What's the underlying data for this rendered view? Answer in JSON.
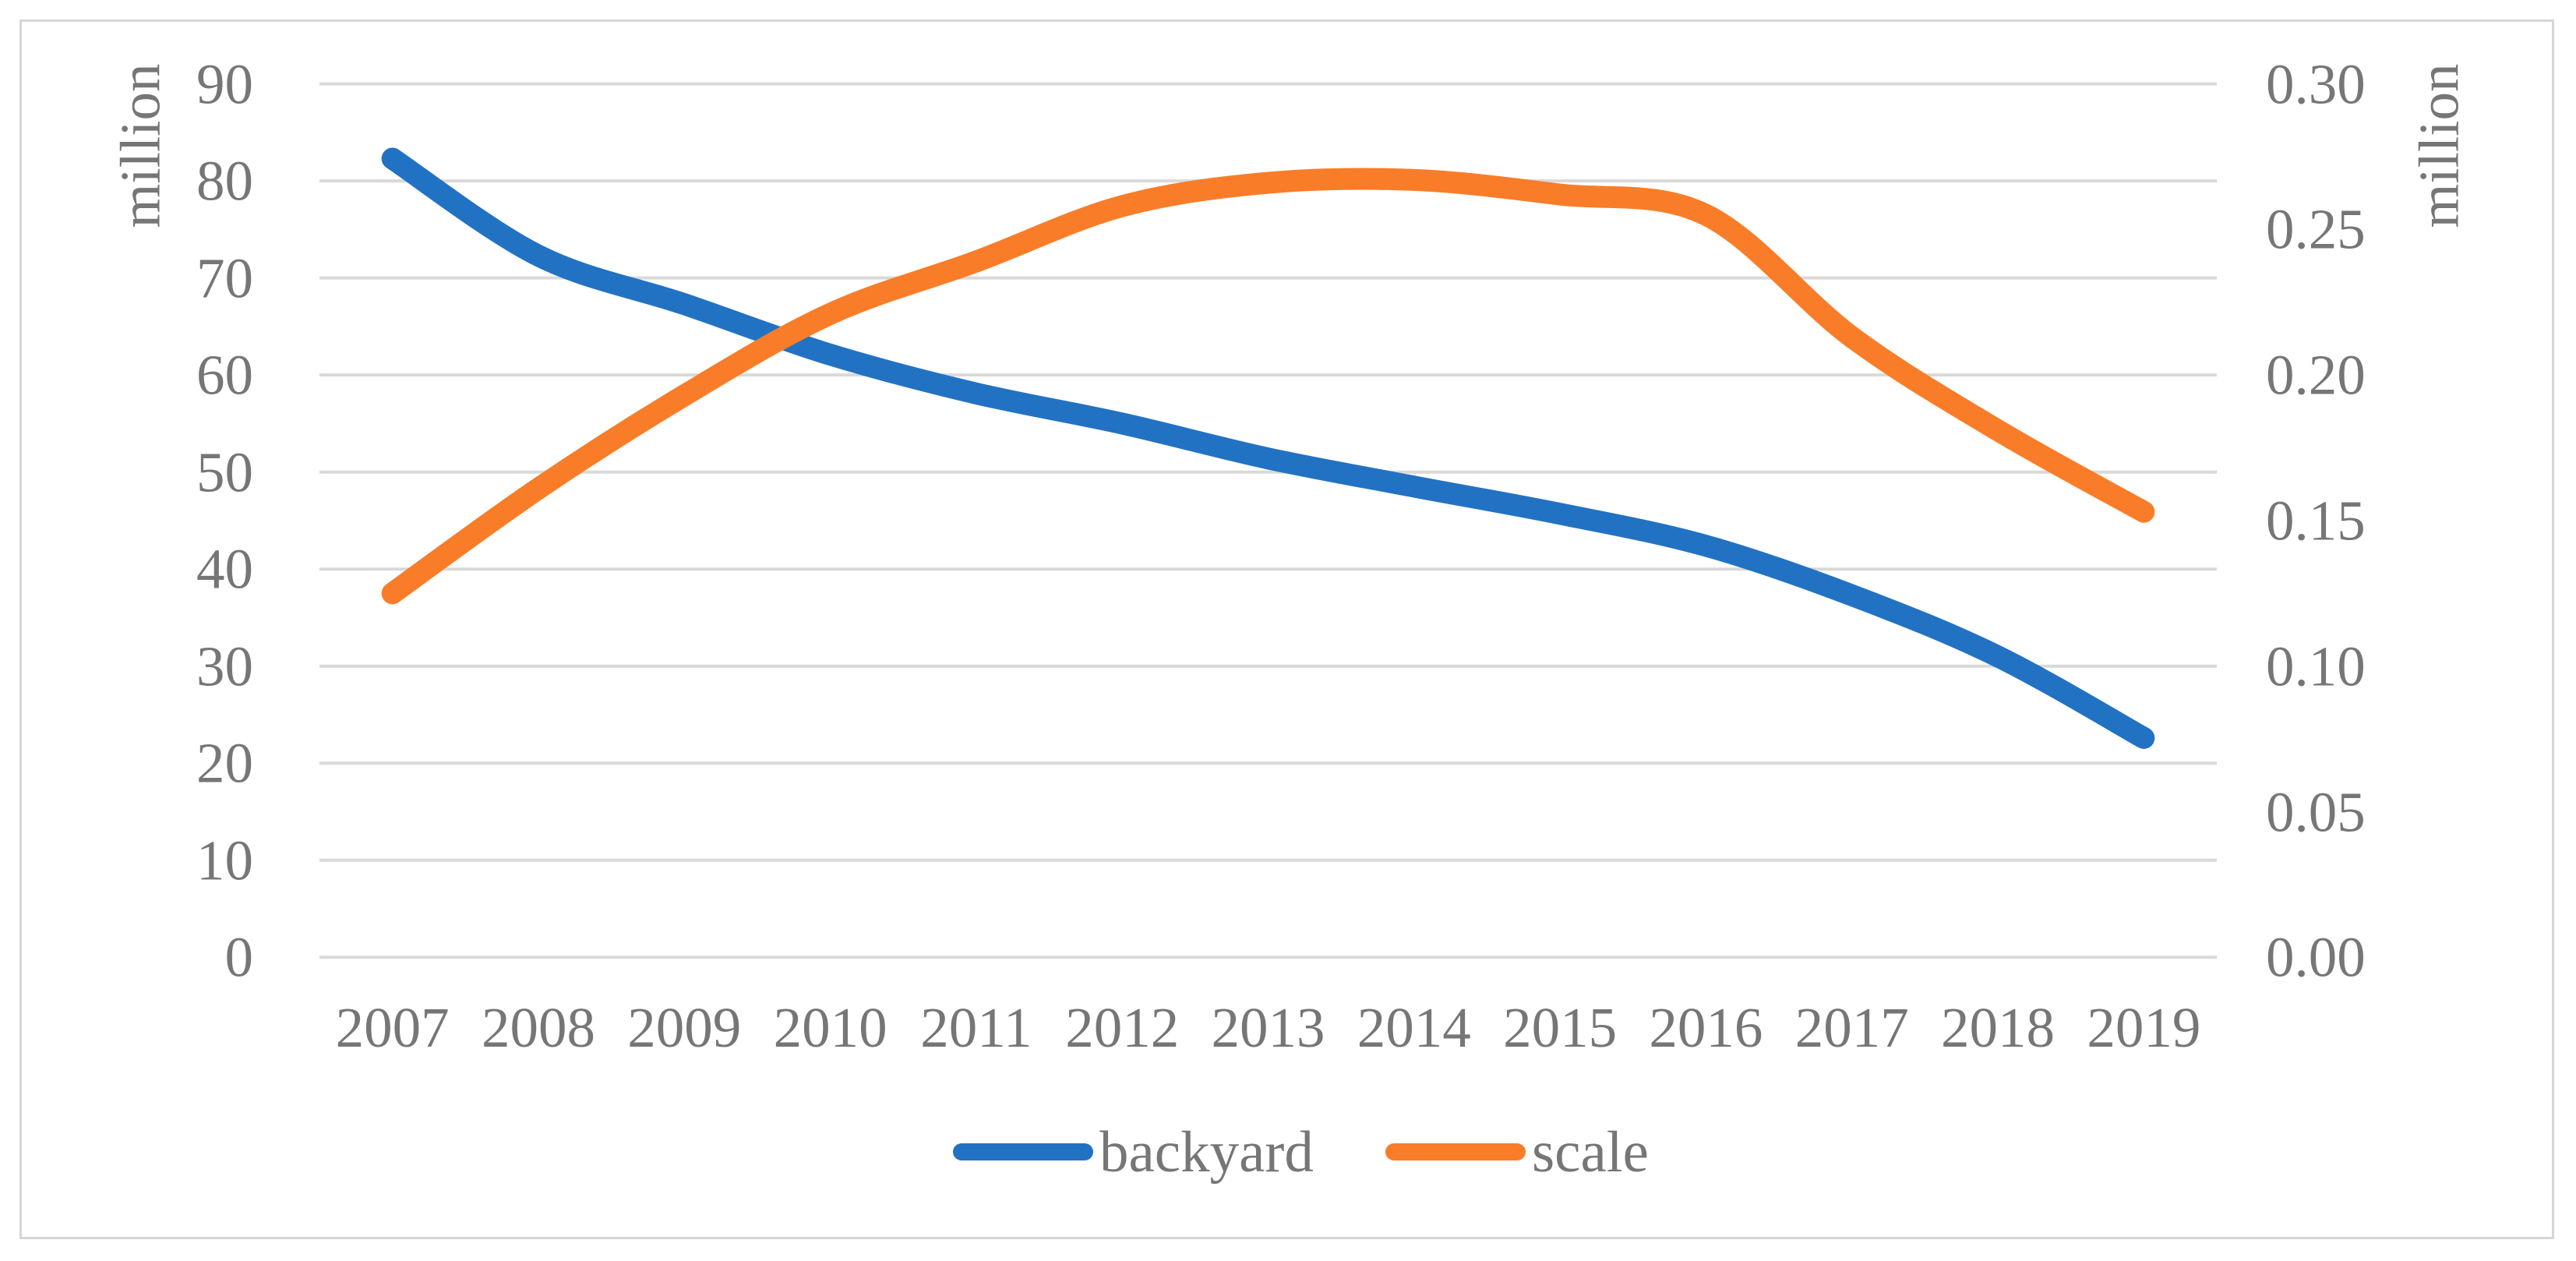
{
  "chart_data": {
    "type": "line",
    "smooth": true,
    "grid": true,
    "legend_position": "bottom",
    "categories": [
      "2007",
      "2008",
      "2009",
      "2010",
      "2011",
      "2012",
      "2013",
      "2014",
      "2015",
      "2016",
      "2017",
      "2018",
      "2019"
    ],
    "series": [
      {
        "name": "backyard",
        "axis": "left",
        "color": "#2272c3",
        "values": [
          82.3,
          72.3,
          67.3,
          62.1,
          58.1,
          55.0,
          51.4,
          48.5,
          45.7,
          42.4,
          37.3,
          31.0,
          22.6
        ]
      },
      {
        "name": "scale",
        "axis": "right",
        "color": "#f97d28",
        "values": [
          0.125,
          0.161,
          0.193,
          0.221,
          0.239,
          0.258,
          0.266,
          0.267,
          0.262,
          0.255,
          0.213,
          0.181,
          0.153
        ]
      }
    ],
    "left_axis": {
      "title": "million",
      "min": 0,
      "max": 90,
      "step": 10,
      "tick_labels": [
        "0",
        "10",
        "20",
        "30",
        "40",
        "50",
        "60",
        "70",
        "80",
        "90"
      ]
    },
    "right_axis": {
      "title": "million",
      "min": 0.0,
      "max": 0.3,
      "step": 0.05,
      "tick_labels": [
        "0.00",
        "0.05",
        "0.10",
        "0.15",
        "0.20",
        "0.25",
        "0.30"
      ]
    },
    "xlabel": "",
    "ylabel_left": "million",
    "ylabel_right": "million",
    "title": ""
  },
  "legend": {
    "items": [
      {
        "label": "backyard",
        "color": "#2272c3"
      },
      {
        "label": "scale",
        "color": "#f97d28"
      }
    ]
  },
  "colors": {
    "gridline": "#d9d9d9",
    "axis_text": "#767676",
    "frame_border": "#d6d6d6",
    "background": "#ffffff",
    "series_backyard": "#2272c3",
    "series_scale": "#f97d28"
  }
}
